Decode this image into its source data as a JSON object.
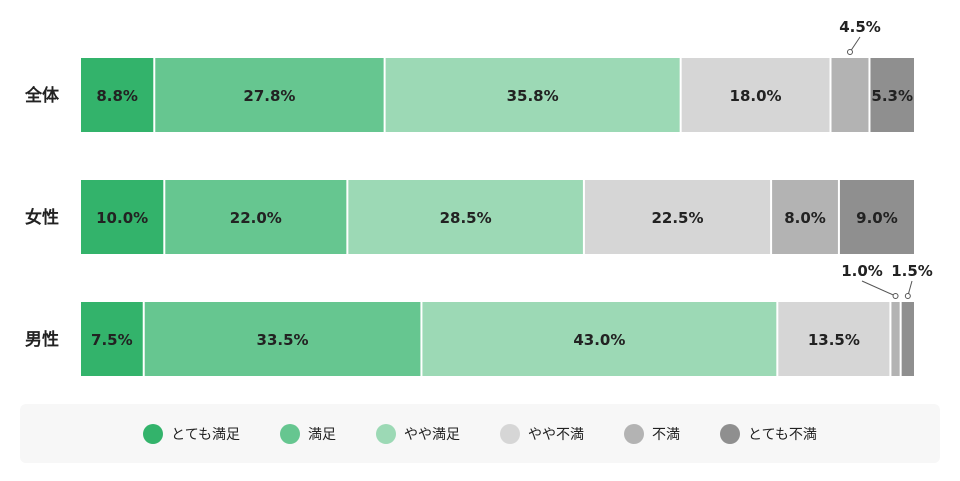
{
  "chart_data": {
    "type": "bar",
    "orientation": "horizontal",
    "stacked": true,
    "percent": true,
    "categories": [
      "全体",
      "女性",
      "男性"
    ],
    "series": [
      {
        "name": "とても満足",
        "color": "#33b36b",
        "values": [
          8.8,
          10.0,
          7.5
        ]
      },
      {
        "name": "満足",
        "color": "#66c690",
        "values": [
          27.8,
          22.0,
          33.5
        ]
      },
      {
        "name": "やや満足",
        "color": "#9cd9b5",
        "values": [
          35.8,
          28.5,
          43.0
        ]
      },
      {
        "name": "やや不満",
        "color": "#d6d6d6",
        "values": [
          18.0,
          22.5,
          13.5
        ]
      },
      {
        "name": "不満",
        "color": "#b3b3b3",
        "values": [
          4.5,
          8.0,
          1.0
        ]
      },
      {
        "name": "とても不満",
        "color": "#8f8f8f",
        "values": [
          5.3,
          9.0,
          1.5
        ]
      }
    ],
    "value_labels": [
      [
        "8.8%",
        "27.8%",
        "35.8%",
        "18.0%",
        "4.5%",
        "5.3%"
      ],
      [
        "10.0%",
        "22.0%",
        "28.5%",
        "22.5%",
        "8.0%",
        "9.0%"
      ],
      [
        "7.5%",
        "33.5%",
        "43.0%",
        "13.5%",
        "1.0%",
        "1.5%"
      ]
    ],
    "xlim": [
      0,
      100
    ],
    "legend_position": "bottom",
    "grid": false
  }
}
